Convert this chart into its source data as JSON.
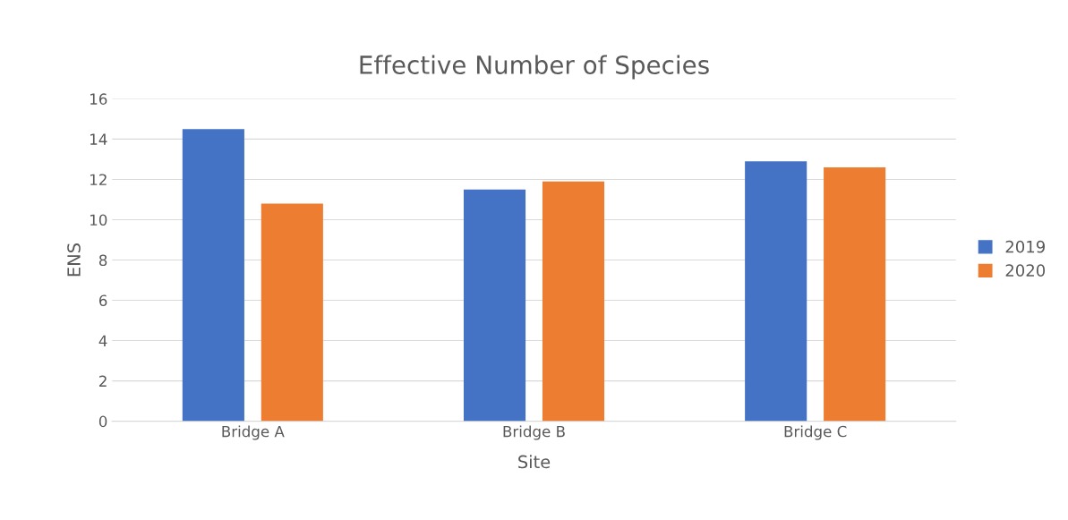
{
  "chart_data": {
    "type": "bar",
    "title": "Effective Number of Species",
    "xlabel": "Site",
    "ylabel": "ENS",
    "categories": [
      "Bridge A",
      "Bridge B",
      "Bridge C"
    ],
    "series": [
      {
        "name": "2019",
        "color": "#4472c4",
        "values": [
          14.5,
          11.5,
          12.9
        ]
      },
      {
        "name": "2020",
        "color": "#ed7d31",
        "values": [
          10.8,
          11.9,
          12.6
        ]
      }
    ],
    "ylim": [
      0,
      16
    ],
    "yticks": [
      0,
      2,
      4,
      6,
      8,
      10,
      12,
      14,
      16
    ],
    "grid": "y",
    "legend": "right"
  }
}
